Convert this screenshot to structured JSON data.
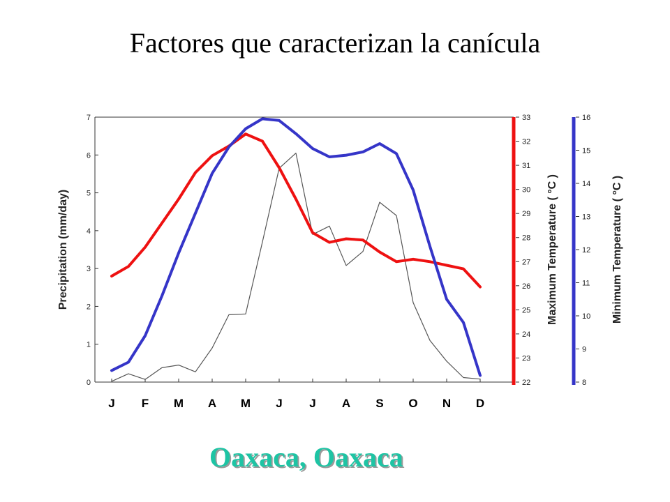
{
  "title": "Factores que caracterizan la canícula",
  "caption": "Oaxaca, Oaxaca",
  "colors": {
    "max_temp": "#ee1111",
    "min_temp": "#3535c8",
    "precip": "#555555",
    "caption": "#1ec4a4"
  },
  "chart_data": {
    "type": "line",
    "x_tick_labels": [
      "J",
      "F",
      "M",
      "A",
      "M",
      "J",
      "J",
      "A",
      "S",
      "O",
      "N",
      "D"
    ],
    "axes": {
      "left": {
        "label": "Precipitation (mm/day)",
        "min": 0,
        "max": 7,
        "ticks": [
          0,
          1,
          2,
          3,
          4,
          5,
          6,
          7
        ]
      },
      "right1": {
        "label": "Maximum Temperature ( °C )",
        "min": 22,
        "max": 33,
        "ticks": [
          22,
          23,
          24,
          25,
          26,
          27,
          28,
          29,
          30,
          31,
          32,
          33
        ]
      },
      "right2": {
        "label": "Minimum Temperature ( °C )",
        "min": 8,
        "max": 16,
        "ticks": [
          8,
          9,
          10,
          11,
          12,
          13,
          14,
          15,
          16
        ]
      }
    },
    "series": [
      {
        "key": "precip",
        "axis": "left",
        "color": "#555555",
        "x": [
          1,
          1.5,
          2,
          2.5,
          3,
          3.5,
          4,
          4.5,
          5,
          5.5,
          6,
          6.5,
          7,
          7.5,
          8,
          8.5,
          9,
          9.5,
          10,
          10.5,
          11,
          11.5,
          12
        ],
        "y": [
          0.02,
          0.22,
          0.07,
          0.38,
          0.45,
          0.27,
          0.9,
          1.78,
          1.8,
          3.7,
          5.65,
          6.05,
          3.9,
          4.12,
          3.08,
          3.45,
          4.75,
          4.4,
          2.1,
          1.1,
          0.55,
          0.12,
          0.08
        ]
      },
      {
        "key": "max_temp",
        "axis": "right1",
        "color": "#ee1111",
        "x": [
          1,
          1.5,
          2,
          2.5,
          3,
          3.5,
          4,
          4.5,
          5,
          5.5,
          6,
          6.5,
          7,
          7.5,
          8,
          8.5,
          9,
          9.5,
          10,
          10.5,
          11,
          11.5,
          12
        ],
        "y": [
          26.4,
          26.8,
          27.6,
          28.6,
          29.6,
          30.7,
          31.4,
          31.8,
          32.3,
          32.0,
          30.9,
          29.6,
          28.2,
          27.8,
          27.95,
          27.9,
          27.4,
          27.0,
          27.1,
          27.0,
          26.85,
          26.7,
          25.95
        ]
      },
      {
        "key": "min_temp",
        "axis": "right2",
        "color": "#3535c8",
        "x": [
          1,
          1.5,
          2,
          2.5,
          3,
          3.5,
          4,
          4.5,
          5,
          5.5,
          6,
          6.5,
          7,
          7.5,
          8,
          8.5,
          9,
          9.5,
          10,
          10.5,
          11,
          11.5,
          12
        ],
        "y": [
          8.35,
          8.6,
          9.4,
          10.6,
          11.9,
          13.1,
          14.3,
          15.1,
          15.65,
          15.95,
          15.9,
          15.5,
          15.05,
          14.8,
          14.85,
          14.95,
          15.2,
          14.9,
          13.8,
          12.1,
          10.5,
          9.8,
          8.2
        ]
      }
    ]
  }
}
